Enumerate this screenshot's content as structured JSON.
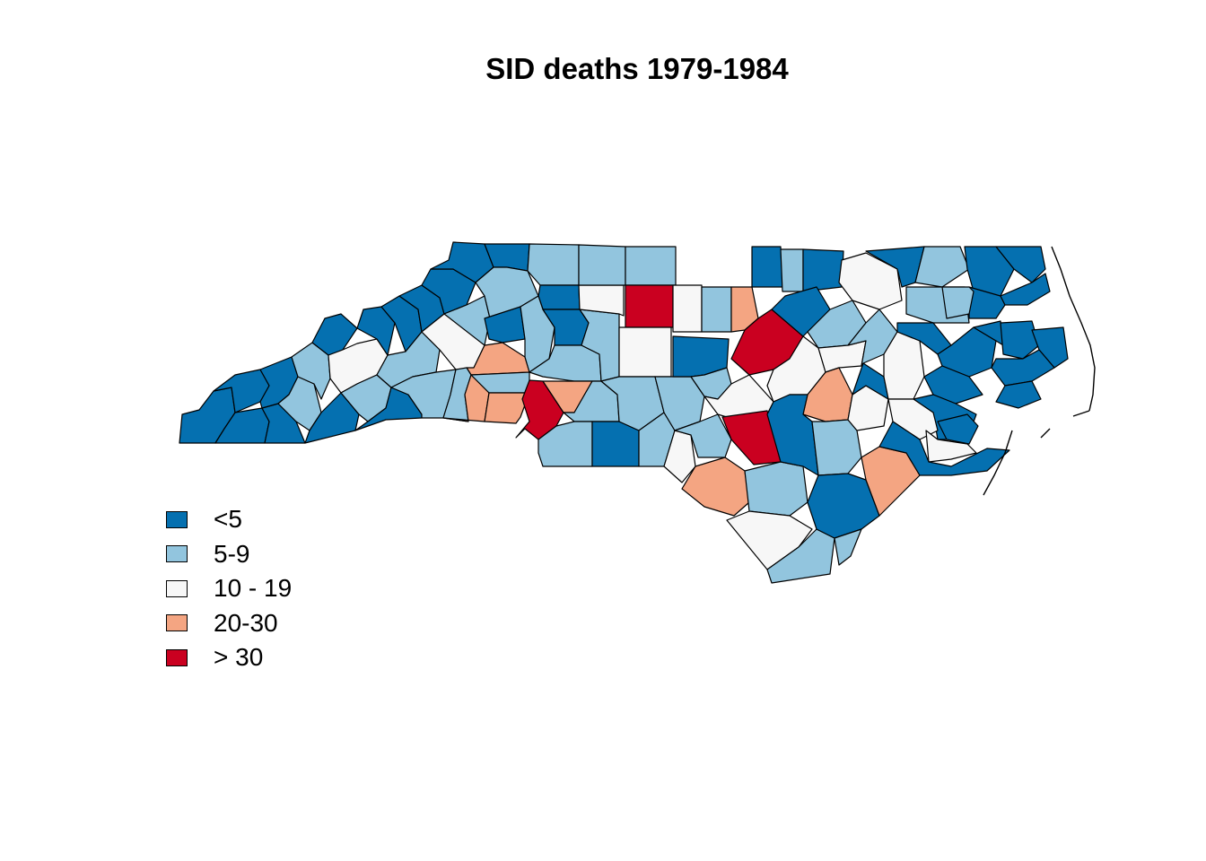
{
  "title": "SID deaths 1979-1984",
  "legend": {
    "entries": [
      {
        "label": "<5",
        "color": "#0570b0"
      },
      {
        "label": "5-9",
        "color": "#92c5de"
      },
      {
        "label": "10 - 19",
        "color": "#f7f7f7"
      },
      {
        "label": "20-30",
        "color": "#f4a582"
      },
      {
        "label": "> 30",
        "color": "#ca0020"
      }
    ]
  },
  "map": {
    "region": "North Carolina counties",
    "legend_placement": "bottom-left"
  }
}
